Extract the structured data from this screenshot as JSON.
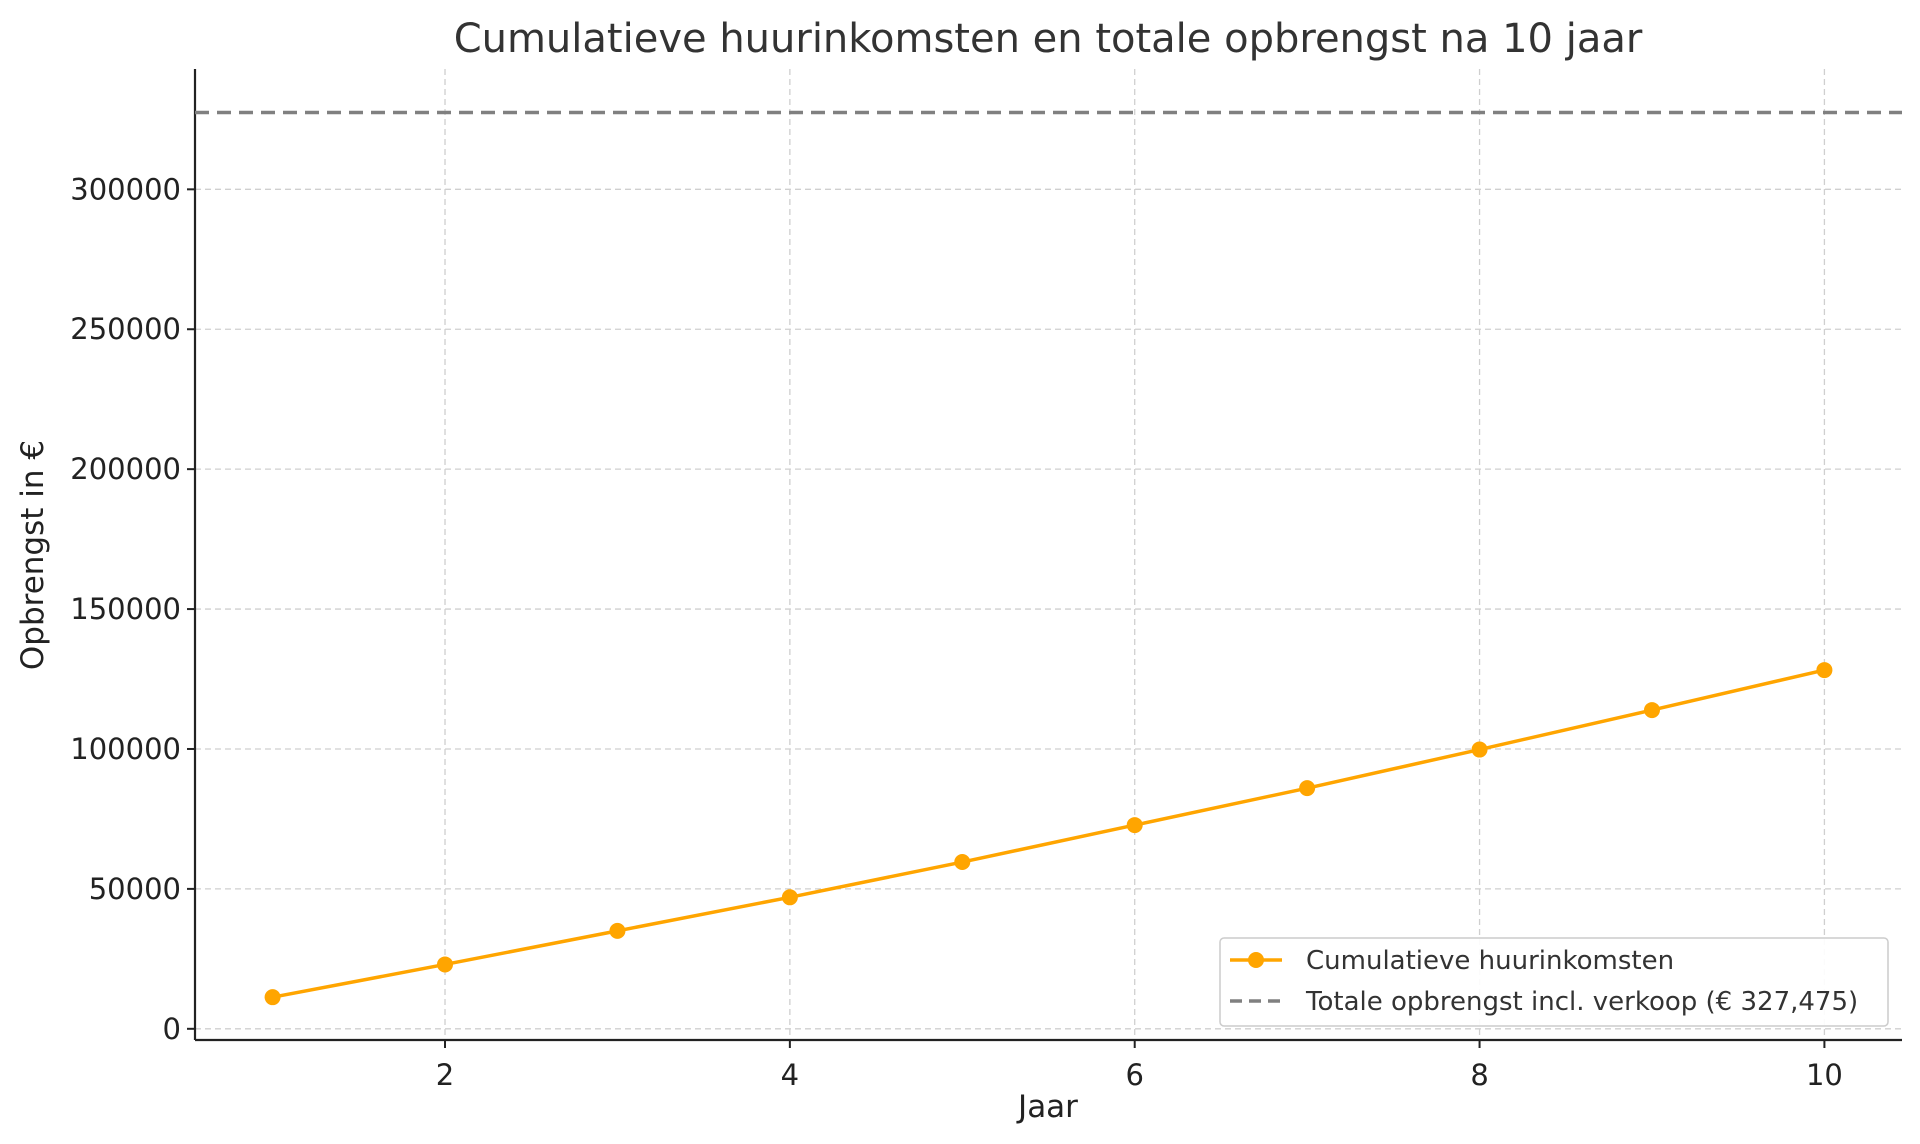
{
  "chart_data": {
    "type": "line",
    "title": "Cumulatieve huurinkomsten en totale opbrengst na 10 jaar",
    "xlabel": "Jaar",
    "ylabel": "Opbrengst in €",
    "xlim": [
      0.55,
      10.45
    ],
    "ylim": [
      -4000,
      343000
    ],
    "x_ticks": [
      2,
      4,
      6,
      8,
      10
    ],
    "y_ticks": [
      0,
      50000,
      100000,
      150000,
      200000,
      250000,
      300000
    ],
    "grid": true,
    "legend_position": "bottom-right",
    "x": [
      1,
      2,
      3,
      4,
      5,
      6,
      7,
      8,
      9,
      10
    ],
    "series": [
      {
        "name": "Cumulatieve huurinkomsten",
        "type": "line-markers",
        "color": "#FFA500",
        "values": [
          11300,
          23000,
          35000,
          47000,
          59600,
          72800,
          86000,
          99800,
          113900,
          128200
        ]
      },
      {
        "name": "Totale opbrengst incl. verkoop (€ 327,475)",
        "type": "hline-dashed",
        "color": "#808080",
        "value": 327475
      }
    ]
  }
}
